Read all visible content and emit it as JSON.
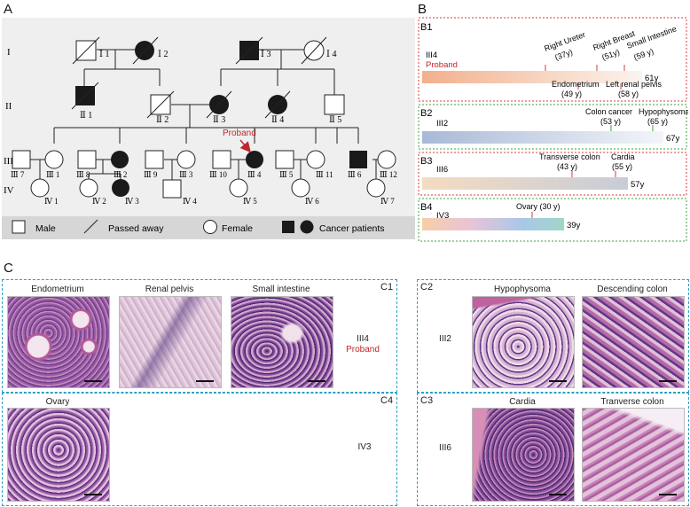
{
  "panels": {
    "A": "A",
    "B": "B",
    "C": "C"
  },
  "pedigree": {
    "generations": [
      "I",
      "II",
      "III",
      "IV"
    ],
    "gen1": [
      "Ⅰ 1",
      "Ⅰ 2",
      "Ⅰ 3",
      "Ⅰ 4"
    ],
    "gen2": [
      "Ⅱ 1",
      "Ⅱ 2",
      "Ⅱ 3",
      "Ⅱ 4",
      "Ⅱ 5"
    ],
    "gen3": [
      "Ⅲ 7",
      "Ⅲ 1",
      "Ⅲ 8",
      "Ⅲ 2",
      "Ⅲ 9",
      "Ⅲ 3",
      "Ⅲ 10",
      "Ⅲ 4",
      "Ⅲ 5",
      "Ⅲ 11",
      "Ⅲ 6",
      "Ⅲ 12"
    ],
    "gen4": [
      "Ⅳ 1",
      "Ⅳ 2",
      "Ⅳ 3",
      "Ⅳ 4",
      "Ⅳ 5",
      "Ⅳ 6",
      "Ⅳ 7"
    ],
    "proband": "Proband",
    "legend": {
      "male": "Male",
      "passed": "Passed away",
      "female": "Female",
      "cancer": "Cancer patients"
    },
    "colors": {
      "affected": "#1a1a1a",
      "proband_arrow": "#c0262b",
      "legend_bg": "#d6d6d6",
      "bg": "#efefef"
    }
  },
  "timelines": {
    "B1": {
      "id": "B1",
      "patient": "III4",
      "proband": "Proband",
      "age": "61y",
      "events_above": [
        "Right Ureter",
        "(37y)",
        "Right Breast",
        "(51y)",
        "Small Intestine",
        "(59 y)"
      ],
      "events_below": [
        "Endometrium",
        "(49 y)",
        "Left renal pelvis",
        "(58 y)"
      ],
      "border": "#d43b3b"
    },
    "B2": {
      "id": "B2",
      "patient": "III2",
      "age": "67y",
      "events_above": [
        "Colon cancer",
        "(53 y)",
        "Hypophysoma",
        "(65 y)"
      ],
      "border": "#3aa33a"
    },
    "B3": {
      "id": "B3",
      "patient": "III6",
      "age": "57y",
      "events_above": [
        "Transverse colon",
        "(43 y)",
        "Cardia",
        "(55 y)"
      ],
      "border": "#d43b3b"
    },
    "B4": {
      "id": "B4",
      "patient": "IV3",
      "age": "39y",
      "events_above": [
        "Ovary (30 y)"
      ],
      "border": "#3aa33a"
    }
  },
  "histology": {
    "C1": {
      "id": "C1",
      "tissues": [
        "Endometrium",
        "Renal pelvis",
        "Small intestine"
      ],
      "patient": "III4",
      "proband": "Proband"
    },
    "C2": {
      "id": "C2",
      "tissues": [
        "Hypophysoma",
        "Descending colon"
      ],
      "patient": "III2"
    },
    "C3": {
      "id": "C3",
      "tissues": [
        "Cardia",
        "Tranverse colon"
      ],
      "patient": "III6"
    },
    "C4": {
      "id": "C4",
      "tissues": [
        "Ovary"
      ],
      "patient": "IV3"
    }
  }
}
